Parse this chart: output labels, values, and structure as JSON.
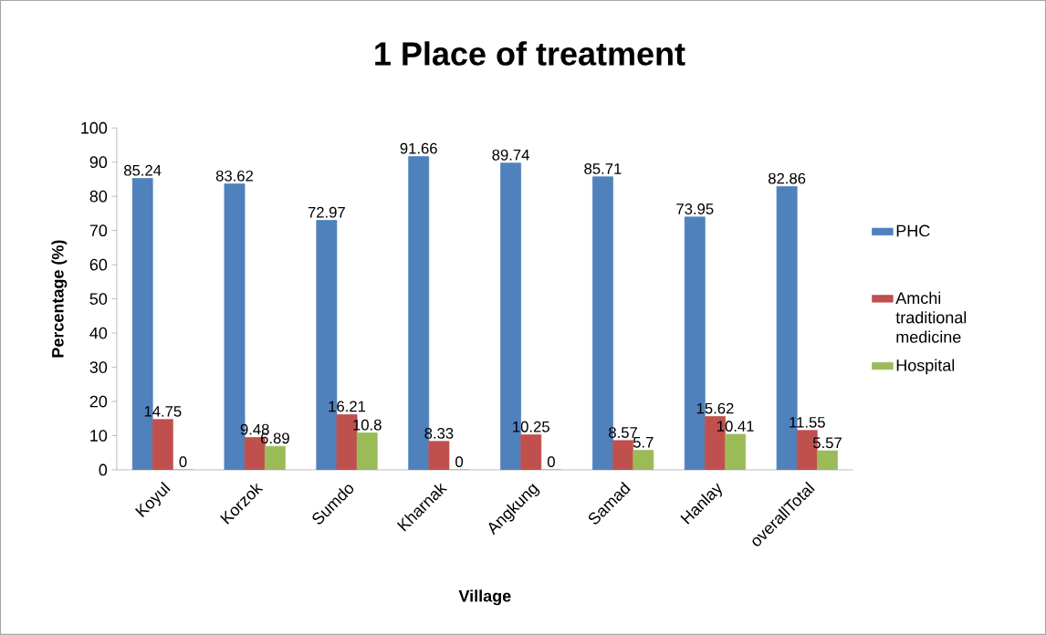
{
  "chart_data": {
    "type": "bar",
    "title": "1  Place of treatment",
    "xlabel": "Village",
    "ylabel": "Percentage (%)",
    "categories": [
      "Koyul",
      "Korzok",
      "Sumdo",
      "Kharnak",
      "Angkung",
      "Samad",
      "Hanlay",
      "overallTotal"
    ],
    "series": [
      {
        "name": "PHC",
        "color": "#4f81bd",
        "values": [
          85.24,
          83.62,
          72.97,
          91.66,
          89.74,
          85.71,
          73.95,
          82.86
        ]
      },
      {
        "name": "Amchi traditional medicine",
        "color": "#c0504d",
        "values": [
          14.75,
          9.48,
          16.21,
          8.33,
          10.25,
          8.57,
          15.62,
          11.55
        ]
      },
      {
        "name": "Hospital",
        "color": "#9bbb59",
        "values": [
          0,
          6.89,
          10.8,
          0,
          0,
          5.7,
          10.41,
          5.57
        ]
      }
    ],
    "ylim": [
      0,
      100
    ],
    "yticks": [
      0,
      10,
      20,
      30,
      40,
      50,
      60,
      70,
      80,
      90,
      100
    ],
    "grid": false,
    "legend": "right",
    "data_labels": true
  }
}
